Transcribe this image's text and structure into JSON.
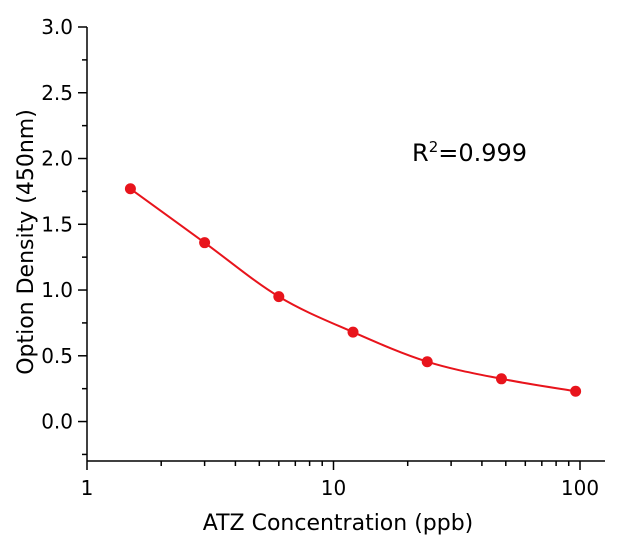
{
  "chart_data": {
    "type": "scatter",
    "xscale": "log",
    "xlim": [
      1,
      120
    ],
    "ylim": [
      -0.3,
      3.0
    ],
    "xticks": [
      1,
      10,
      100
    ],
    "xtick_labels": [
      "1",
      "10",
      "100"
    ],
    "yticks": [
      0.0,
      0.5,
      1.0,
      1.5,
      2.0,
      2.5,
      3.0
    ],
    "ytick_labels": [
      "0.0",
      "0.5",
      "1.0",
      "1.5",
      "2.0",
      "2.5",
      "3.0"
    ],
    "xlabel": "ATZ Concentration (ppb)",
    "ylabel": "Option Density (450nm)",
    "grid": false,
    "annotation": {
      "base": "R",
      "sup": "2",
      "rest": "=0.999"
    },
    "series": [
      {
        "x": [
          1.5,
          3,
          6,
          12,
          24,
          48,
          96
        ],
        "y": [
          1.77,
          1.36,
          0.95,
          0.68,
          0.455,
          0.325,
          0.23
        ],
        "color": "#e8141c",
        "fit_curve": true
      }
    ]
  }
}
